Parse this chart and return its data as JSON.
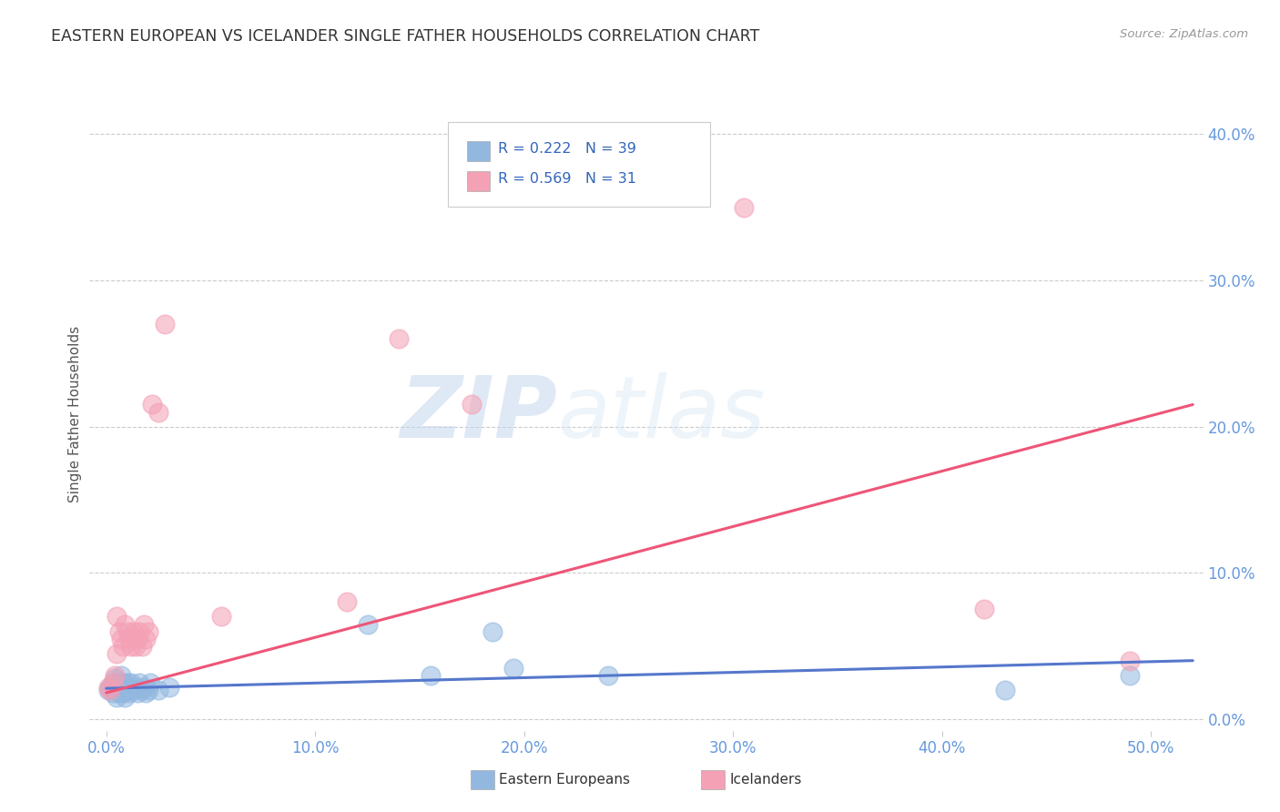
{
  "title": "EASTERN EUROPEAN VS ICELANDER SINGLE FATHER HOUSEHOLDS CORRELATION CHART",
  "source": "Source: ZipAtlas.com",
  "ylabel": "Single Father Households",
  "xlabel_vals": [
    0.0,
    0.1,
    0.2,
    0.3,
    0.4,
    0.5
  ],
  "ylabel_vals": [
    0.0,
    0.1,
    0.2,
    0.3,
    0.4
  ],
  "xlim": [
    -0.008,
    0.525
  ],
  "ylim": [
    -0.008,
    0.425
  ],
  "blue_color": "#92B8E0",
  "pink_color": "#F4A0B5",
  "blue_line_color": "#5577CC",
  "pink_line_color": "#EE5577",
  "watermark_zip": "ZIP",
  "watermark_atlas": "atlas",
  "legend_R_blue": "R = 0.222",
  "legend_N_blue": "N = 39",
  "legend_R_pink": "R = 0.569",
  "legend_N_pink": "N = 31",
  "blue_scatter_x": [
    0.001,
    0.002,
    0.003,
    0.003,
    0.004,
    0.004,
    0.005,
    0.005,
    0.006,
    0.006,
    0.007,
    0.007,
    0.008,
    0.008,
    0.009,
    0.009,
    0.01,
    0.01,
    0.011,
    0.011,
    0.012,
    0.013,
    0.014,
    0.015,
    0.016,
    0.017,
    0.018,
    0.019,
    0.02,
    0.021,
    0.025,
    0.03,
    0.125,
    0.155,
    0.185,
    0.195,
    0.24,
    0.43,
    0.49
  ],
  "blue_scatter_y": [
    0.02,
    0.022,
    0.018,
    0.025,
    0.02,
    0.028,
    0.015,
    0.022,
    0.018,
    0.025,
    0.02,
    0.03,
    0.025,
    0.018,
    0.022,
    0.015,
    0.02,
    0.025,
    0.022,
    0.018,
    0.025,
    0.02,
    0.022,
    0.018,
    0.025,
    0.02,
    0.022,
    0.018,
    0.02,
    0.025,
    0.02,
    0.022,
    0.065,
    0.03,
    0.06,
    0.035,
    0.03,
    0.02,
    0.03
  ],
  "pink_scatter_x": [
    0.001,
    0.002,
    0.003,
    0.004,
    0.005,
    0.006,
    0.007,
    0.008,
    0.009,
    0.01,
    0.011,
    0.012,
    0.013,
    0.014,
    0.015,
    0.016,
    0.017,
    0.018,
    0.019,
    0.02,
    0.022,
    0.025,
    0.028,
    0.055,
    0.115,
    0.14,
    0.175,
    0.305,
    0.42,
    0.49,
    0.005
  ],
  "pink_scatter_y": [
    0.022,
    0.02,
    0.025,
    0.03,
    0.045,
    0.06,
    0.055,
    0.05,
    0.065,
    0.06,
    0.055,
    0.05,
    0.06,
    0.05,
    0.055,
    0.06,
    0.05,
    0.065,
    0.055,
    0.06,
    0.215,
    0.21,
    0.27,
    0.07,
    0.08,
    0.26,
    0.215,
    0.35,
    0.075,
    0.04,
    0.07
  ],
  "blue_trend_x": [
    0.0,
    0.52
  ],
  "blue_trend_y": [
    0.021,
    0.04
  ],
  "pink_trend_x": [
    0.0,
    0.52
  ],
  "pink_trend_y": [
    0.018,
    0.215
  ],
  "grid_color": "#cccccc",
  "background_color": "#ffffff",
  "tick_color": "#6699DD",
  "title_color": "#333333",
  "source_color": "#999999"
}
